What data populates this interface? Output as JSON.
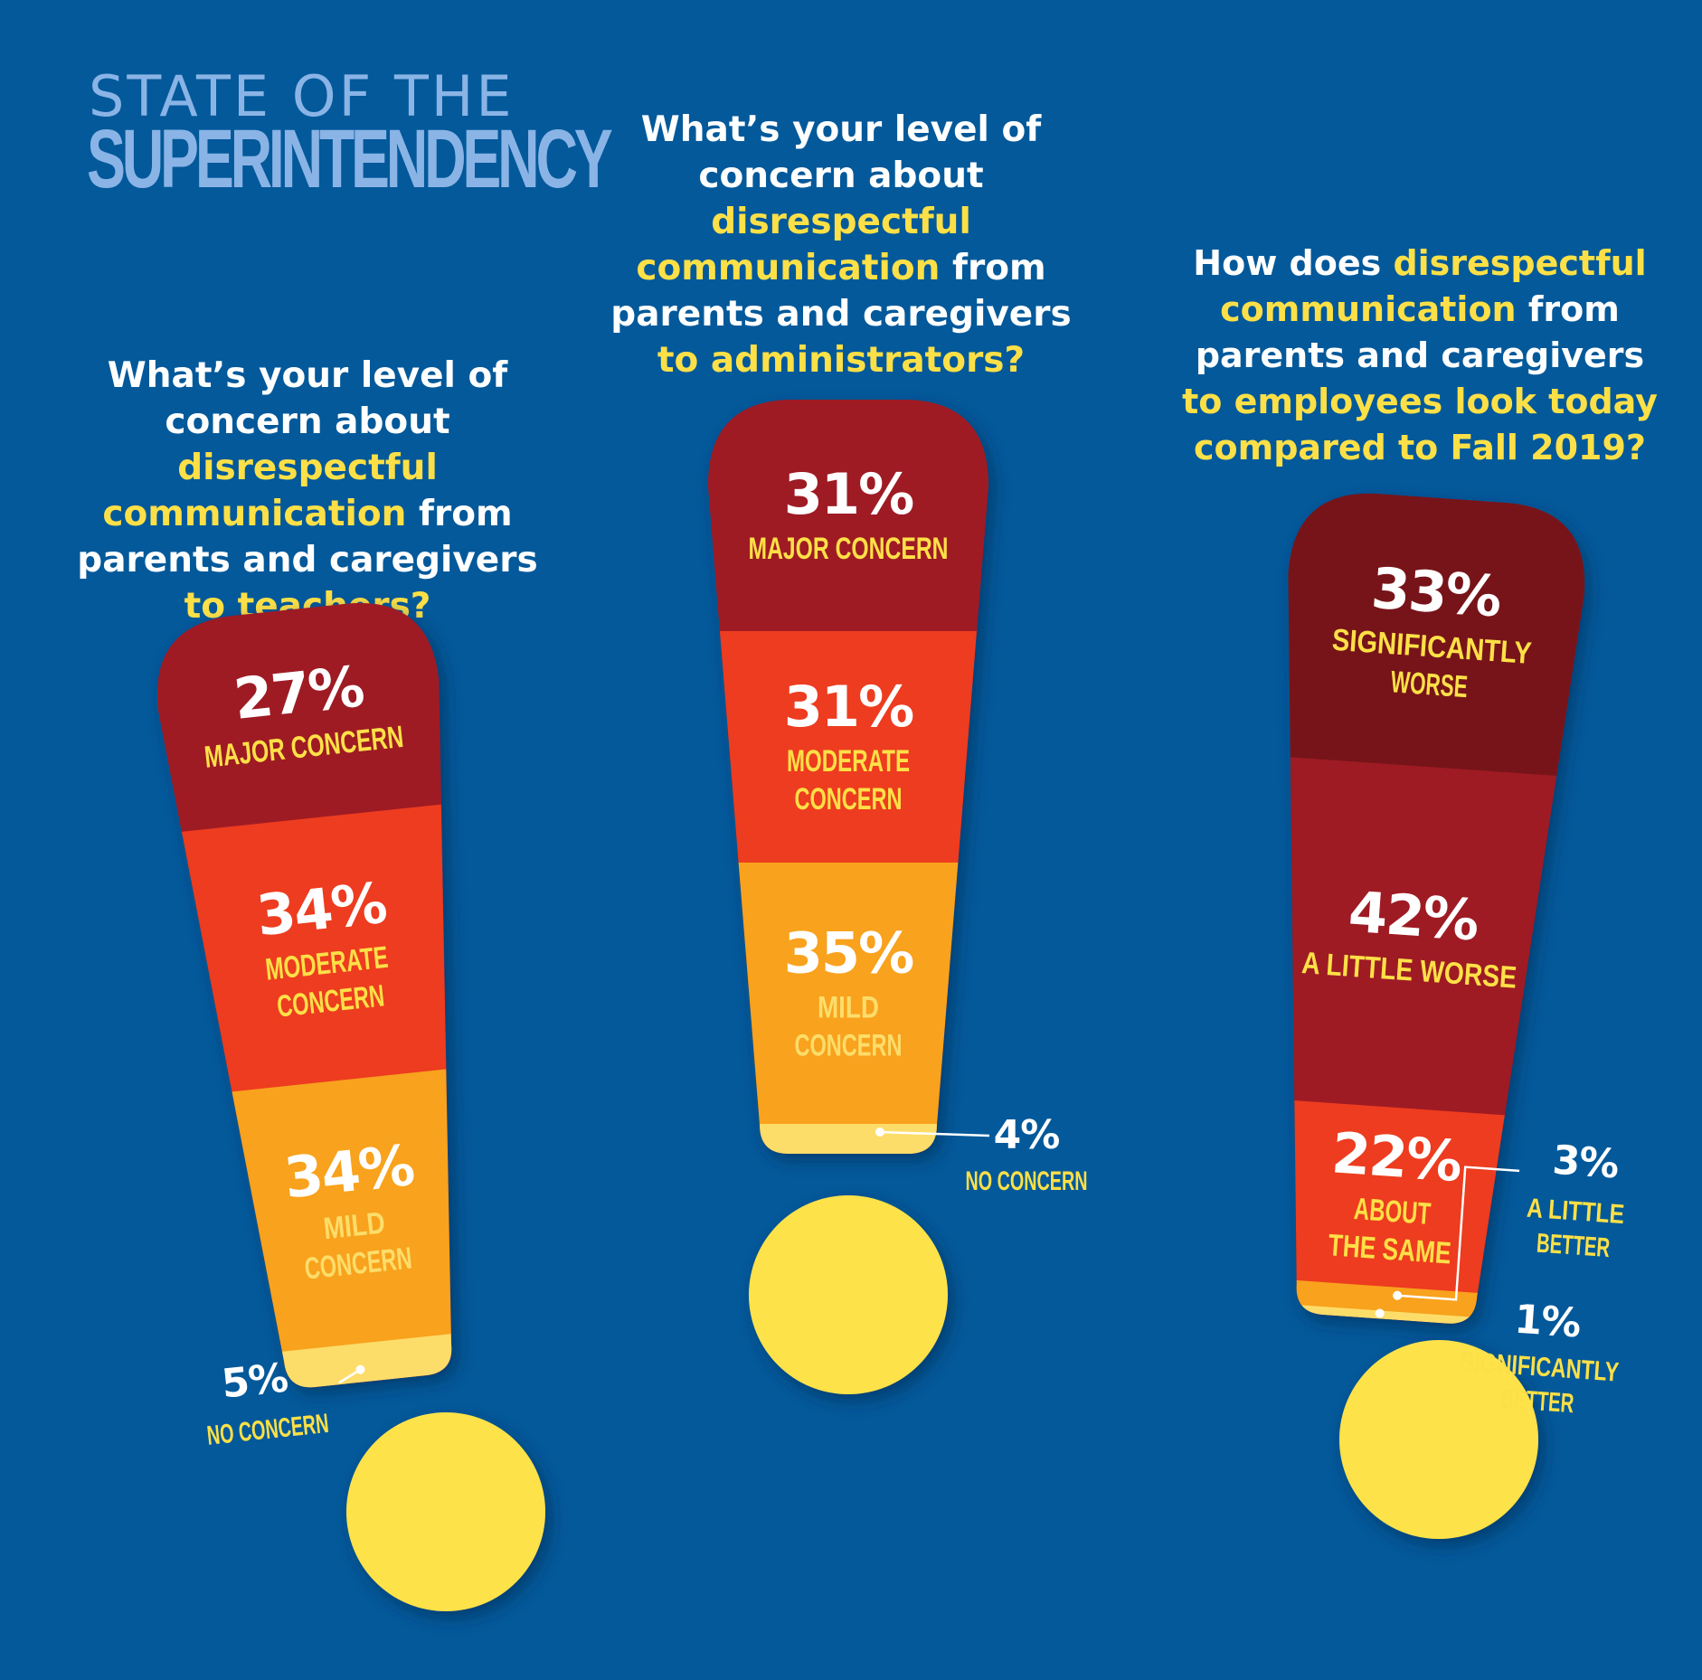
{
  "brand": {
    "line1": "STATE OF THE",
    "line2": "SUPERINTENDENCY"
  },
  "colors": {
    "background": "#03599a",
    "brand_text": "#8ab4e6",
    "highlight": "#fde047",
    "label_text": "#fde047",
    "dark_red": "#9e1b24",
    "darkest_red": "#771419",
    "orange_red": "#ed3c1f",
    "orange": "#f8a21d",
    "light_yellow": "#fddd6a",
    "dot_yellow": "#fde249"
  },
  "questions": [
    {
      "lines": [
        [
          {
            "t": "What’s your level of",
            "hl": false
          }
        ],
        [
          {
            "t": "concern about ",
            "hl": false
          },
          {
            "t": "disrespectful",
            "hl": true
          }
        ],
        [
          {
            "t": "communication",
            "hl": true
          },
          {
            "t": " from",
            "hl": false
          }
        ],
        [
          {
            "t": "parents and caregivers",
            "hl": false
          }
        ],
        [
          {
            "t": "to teachers?",
            "hl": true
          }
        ]
      ]
    },
    {
      "lines": [
        [
          {
            "t": "What’s your level of",
            "hl": false
          }
        ],
        [
          {
            "t": "concern about ",
            "hl": false
          },
          {
            "t": "disrespectful",
            "hl": true
          }
        ],
        [
          {
            "t": "communication",
            "hl": true
          },
          {
            "t": " from",
            "hl": false
          }
        ],
        [
          {
            "t": "parents and caregivers",
            "hl": false
          }
        ],
        [
          {
            "t": "to administrators?",
            "hl": true
          }
        ]
      ]
    },
    {
      "lines": [
        [
          {
            "t": "How does ",
            "hl": false
          },
          {
            "t": "disrespectful",
            "hl": true
          }
        ],
        [
          {
            "t": "communication",
            "hl": true
          },
          {
            "t": " from",
            "hl": false
          }
        ],
        [
          {
            "t": "parents and caregivers",
            "hl": false
          }
        ],
        [
          {
            "t": "to employees look today",
            "hl": true
          }
        ],
        [
          {
            "t": "compared to Fall 2019?",
            "hl": true
          }
        ]
      ]
    }
  ],
  "chart_data": [
    {
      "type": "stacked-bar",
      "title": "What’s your level of concern about disrespectful communication from parents and caregivers to teachers?",
      "categories": [
        "MAJOR CONCERN",
        "MODERATE CONCERN",
        "MILD CONCERN",
        "NO CONCERN"
      ],
      "values": [
        27,
        34,
        34,
        5
      ],
      "value_labels": [
        "27%",
        "34%",
        "34%",
        "5%"
      ],
      "label_lines": [
        [
          "MAJOR CONCERN"
        ],
        [
          "MODERATE",
          "CONCERN"
        ],
        [
          "MILD",
          "CONCERN"
        ],
        [
          "NO CONCERN"
        ]
      ],
      "colors": [
        "#9e1b24",
        "#ed3c1f",
        "#f8a21d",
        "#fddd6a"
      ],
      "label_colors": [
        "#fde047",
        "#fde047",
        "#fddd6a",
        "#fde047"
      ]
    },
    {
      "type": "stacked-bar",
      "title": "What’s your level of concern about disrespectful communication from parents and caregivers to administrators?",
      "categories": [
        "MAJOR CONCERN",
        "MODERATE CONCERN",
        "MILD CONCERN",
        "NO CONCERN"
      ],
      "values": [
        31,
        31,
        35,
        4
      ],
      "value_labels": [
        "31%",
        "31%",
        "35%",
        "4%"
      ],
      "label_lines": [
        [
          "MAJOR CONCERN"
        ],
        [
          "MODERATE",
          "CONCERN"
        ],
        [
          "MILD",
          "CONCERN"
        ],
        [
          "NO CONCERN"
        ]
      ],
      "colors": [
        "#9e1b24",
        "#ed3c1f",
        "#f8a21d",
        "#fddd6a"
      ],
      "label_colors": [
        "#fde047",
        "#fde047",
        "#fddd6a",
        "#fde047"
      ]
    },
    {
      "type": "stacked-bar",
      "title": "How does disrespectful communication from parents and caregivers to employees look today compared to Fall 2019?",
      "categories": [
        "SIGNIFICANTLY WORSE",
        "A LITTLE WORSE",
        "ABOUT THE SAME",
        "A LITTLE BETTER",
        "SIGNIFICANTLY BETTER"
      ],
      "values": [
        33,
        42,
        22,
        3,
        1
      ],
      "value_labels": [
        "33%",
        "42%",
        "22%",
        "3%",
        "1%"
      ],
      "label_lines": [
        [
          "SIGNIFICANTLY",
          "WORSE"
        ],
        [
          "A LITTLE WORSE"
        ],
        [
          "ABOUT",
          "THE SAME"
        ],
        [
          "A LITTLE",
          "BETTER"
        ],
        [
          "SIGNIFICANTLY",
          "BETTER"
        ]
      ],
      "colors": [
        "#771419",
        "#9e1b24",
        "#ed3c1f",
        "#f8a21d",
        "#fddd6a"
      ],
      "label_colors": [
        "#fde047",
        "#fde047",
        "#fde047",
        "#fde047",
        "#fde047"
      ]
    }
  ]
}
